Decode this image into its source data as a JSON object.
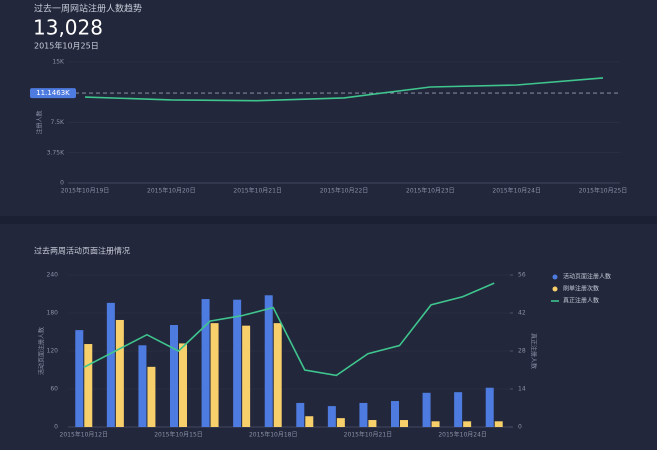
{
  "chart_data": [
    {
      "type": "line",
      "title": "过去一周网站注册人数趋势",
      "kpi_value": "13,028",
      "kpi_date": "2015年10月25日",
      "y_label": "注册人数",
      "categories": [
        "2015年10月19日",
        "2015年10月20日",
        "2015年10月21日",
        "2015年10月22日",
        "2015年10月23日",
        "2015年10月24日",
        "2015年10月25日"
      ],
      "values": [
        10650,
        10300,
        10200,
        10550,
        11900,
        12150,
        13028
      ],
      "color": "#3fc58e",
      "reference_line": {
        "value": 11146.3,
        "label": "11.1463K"
      },
      "ylim": [
        0,
        15000
      ],
      "yticks": [
        {
          "value": 0,
          "label": "0"
        },
        {
          "value": 3750,
          "label": "3.75K"
        },
        {
          "value": 7500,
          "label": "7.5K"
        },
        {
          "value": 15000,
          "label": "15K"
        }
      ],
      "grid": true
    },
    {
      "type": "bar",
      "title": "过去两周活动页面注册情况",
      "y_label": "活动页面注册人数",
      "y2_label": "真正注册人数",
      "categories": [
        "2015年10月12日",
        null,
        null,
        "2015年10月15日",
        null,
        null,
        "2015年10月18日",
        null,
        null,
        "2015年10月21日",
        null,
        null,
        "2015年10月24日",
        null
      ],
      "series": [
        {
          "name": "活动页面注册人数",
          "color": "#4e7be0",
          "values": [
            153,
            196,
            129,
            161,
            202,
            201,
            208,
            38,
            33,
            38,
            41,
            54,
            55,
            62
          ]
        },
        {
          "name": "刷单注册次数",
          "color": "#f7cf6b",
          "values": [
            131,
            169,
            95,
            132,
            164,
            160,
            164,
            17,
            14,
            11,
            11,
            9,
            9,
            9
          ]
        },
        {
          "name": "真正注册人数",
          "color": "#3fc58e",
          "type": "line",
          "axis": "y2",
          "values": [
            22,
            28,
            34,
            28,
            39,
            41,
            44,
            21,
            19,
            27,
            30,
            45,
            48,
            53
          ]
        }
      ],
      "ylim": [
        0,
        240
      ],
      "yticks": [
        0,
        60,
        120,
        180,
        240
      ],
      "y2lim": [
        0,
        56
      ],
      "y2ticks": [
        0,
        14,
        28,
        42,
        56
      ],
      "legend": "top-right"
    }
  ]
}
